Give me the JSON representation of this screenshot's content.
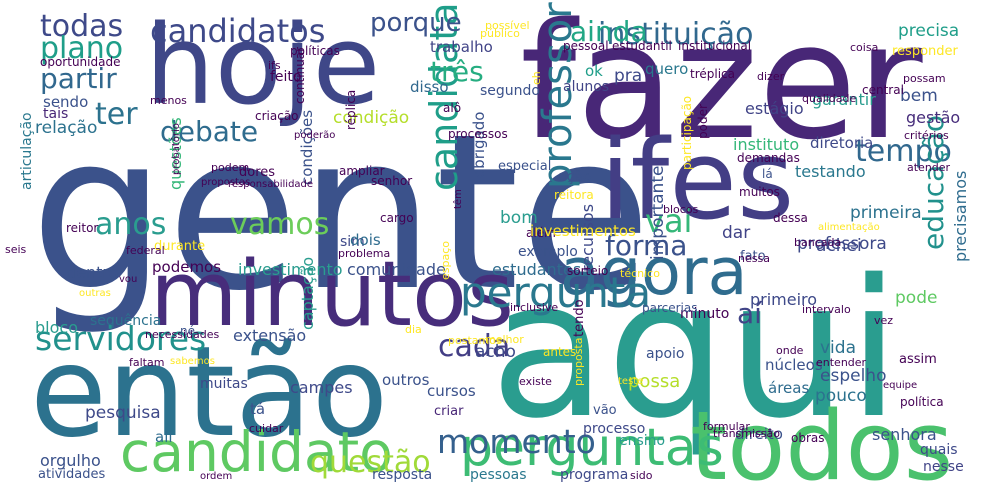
{
  "words": [
    {
      "text": "gente",
      "color": "#3b528b"
    },
    {
      "text": "fazer",
      "color": "#482777"
    },
    {
      "text": "aqui",
      "color": "#2a9d8f"
    },
    {
      "text": "hoje",
      "color": "#3f4788"
    },
    {
      "text": "ifes",
      "color": "#433e85"
    },
    {
      "text": "então",
      "color": "#2c728e"
    },
    {
      "text": "minutos",
      "color": "#472d7b"
    },
    {
      "text": "todos",
      "color": "#4ac16d"
    },
    {
      "text": "agora",
      "color": "#2f6c8e"
    },
    {
      "text": "candidato",
      "color": "#5ec962"
    },
    {
      "text": "perguntas",
      "color": "#3dbc74"
    },
    {
      "text": "pergunta",
      "color": "#2a788e"
    },
    {
      "text": "candidatos",
      "color": "#3e4989"
    },
    {
      "text": "instituição",
      "color": "#31688e"
    },
    {
      "text": "servidores",
      "color": "#21918c"
    },
    {
      "text": "momento",
      "color": "#35608d"
    },
    {
      "text": "questão",
      "color": "#a0da39"
    },
    {
      "text": "candidata",
      "color": "#1f9e89"
    },
    {
      "text": "professor",
      "color": "#2a788e"
    },
    {
      "text": "tempo",
      "color": "#31688e"
    },
    {
      "text": "todas",
      "color": "#3e4989"
    },
    {
      "text": "plano",
      "color": "#1f9e89"
    },
    {
      "text": "porque",
      "color": "#3b528b"
    },
    {
      "text": "ainda",
      "color": "#22a785"
    },
    {
      "text": "partir",
      "color": "#31688e"
    },
    {
      "text": "três",
      "color": "#26ad81"
    },
    {
      "text": "ter",
      "color": "#2c728e"
    },
    {
      "text": "debate",
      "color": "#2f6c8e"
    },
    {
      "text": "vai",
      "color": "#35b779"
    },
    {
      "text": "anos",
      "color": "#2a9d8f"
    },
    {
      "text": "vamos",
      "color": "#6ccd5a"
    },
    {
      "text": "forma",
      "color": "#3b528b"
    },
    {
      "text": "cada",
      "color": "#433e85"
    },
    {
      "text": "aí",
      "color": "#414487"
    },
    {
      "text": "educação",
      "color": "#21918c"
    },
    {
      "text": "precisa",
      "color": "#1f9e89"
    },
    {
      "text": "responder",
      "color": "#fde725"
    },
    {
      "text": "trabalho",
      "color": "#414487"
    },
    {
      "text": "condição",
      "color": "#b5de2b"
    },
    {
      "text": "segundo",
      "color": "#3b528b"
    },
    {
      "text": "alunos",
      "color": "#414487"
    },
    {
      "text": "quero",
      "color": "#2a788e"
    },
    {
      "text": "pra",
      "color": "#3e4989"
    },
    {
      "text": "ok",
      "color": "#1f9e89"
    },
    {
      "text": "disso",
      "color": "#31688e"
    },
    {
      "text": "garantir",
      "color": "#2a9d8f"
    },
    {
      "text": "bem",
      "color": "#3b528b"
    },
    {
      "text": "gestão",
      "color": "#472d7b"
    },
    {
      "text": "instituto",
      "color": "#35b779"
    },
    {
      "text": "diretoria",
      "color": "#3e4989"
    },
    {
      "text": "estágio",
      "color": "#414487"
    },
    {
      "text": "relação",
      "color": "#2c728e"
    },
    {
      "text": "sendo",
      "color": "#3b528b"
    },
    {
      "text": "tais",
      "color": "#482777"
    },
    {
      "text": "feito",
      "color": "#440154"
    },
    {
      "text": "oportunidade",
      "color": "#440154"
    },
    {
      "text": "políticas",
      "color": "#440154"
    },
    {
      "text": "articulação",
      "color": "#2a788e"
    },
    {
      "text": "questões",
      "color": "#35b779"
    },
    {
      "text": "condições",
      "color": "#3b528b"
    },
    {
      "text": "sim",
      "color": "#3e4989"
    },
    {
      "text": "dois",
      "color": "#2f6c8e"
    },
    {
      "text": "bom",
      "color": "#2a9d8f"
    },
    {
      "text": "obrigado",
      "color": "#3b528b"
    },
    {
      "text": "dar",
      "color": "#414487"
    },
    {
      "text": "achei",
      "color": "#3e4989"
    },
    {
      "text": "professora",
      "color": "#3e4989"
    },
    {
      "text": "primeira",
      "color": "#2c728e"
    },
    {
      "text": "testando",
      "color": "#2a788e"
    },
    {
      "text": "dentro",
      "color": "#3b528b"
    },
    {
      "text": "podemos",
      "color": "#440154"
    },
    {
      "text": "investimento",
      "color": "#2a9d8f"
    },
    {
      "text": "comunidade",
      "color": "#3b528b"
    },
    {
      "text": "estudantes",
      "color": "#2f6c8e"
    },
    {
      "text": "primeiro",
      "color": "#3e4989"
    },
    {
      "text": "pode",
      "color": "#5ec962"
    },
    {
      "text": "precisamos",
      "color": "#2f6c8e"
    },
    {
      "text": "bloco",
      "color": "#2a9d8f"
    },
    {
      "text": "sequência",
      "color": "#2c728e"
    },
    {
      "text": "extensão",
      "color": "#3b528b"
    },
    {
      "text": "recursos",
      "color": "#3e4989"
    },
    {
      "text": "acho",
      "color": "#3e4989"
    },
    {
      "text": "vida",
      "color": "#2c728e"
    },
    {
      "text": "espelho",
      "color": "#3b528b"
    },
    {
      "text": "pouco",
      "color": "#2c728e"
    },
    {
      "text": "importante",
      "color": "#3b528b"
    },
    {
      "text": "possa",
      "color": "#b5de2b"
    },
    {
      "text": "captação",
      "color": "#2a9d8f"
    },
    {
      "text": "campes",
      "color": "#3e4989"
    },
    {
      "text": "pesquisa",
      "color": "#3e4989"
    },
    {
      "text": "tá",
      "color": "#3b528b"
    },
    {
      "text": "outros",
      "color": "#3b528b"
    },
    {
      "text": "muitas",
      "color": "#3e4989"
    },
    {
      "text": "ali",
      "color": "#2f6c8e"
    },
    {
      "text": "orgulho",
      "color": "#3b528b"
    },
    {
      "text": "atividades",
      "color": "#3b528b"
    },
    {
      "text": "resposta",
      "color": "#3b528b"
    },
    {
      "text": "pessoas",
      "color": "#2a788e"
    },
    {
      "text": "programa",
      "color": "#3e4989"
    },
    {
      "text": "processo",
      "color": "#3e4989"
    },
    {
      "text": "ensino",
      "color": "#2a9d8f"
    },
    {
      "text": "direito",
      "color": "#3b528b"
    },
    {
      "text": "senhora",
      "color": "#3b528b"
    },
    {
      "text": "quais",
      "color": "#3e4989"
    },
    {
      "text": "nesse",
      "color": "#414487"
    },
    {
      "text": "cursos",
      "color": "#3b528b"
    },
    {
      "text": "criar",
      "color": "#482777"
    },
    {
      "text": "vão",
      "color": "#3b528b"
    },
    {
      "text": "áreas",
      "color": "#2f6c8e"
    },
    {
      "text": "núcleos",
      "color": "#3b528b"
    },
    {
      "text": "assim",
      "color": "#440154"
    },
    {
      "text": "apoio",
      "color": "#3b528b"
    },
    {
      "text": "minuto",
      "color": "#440154"
    },
    {
      "text": "exemplo",
      "color": "#3b528b"
    },
    {
      "text": "estudantil",
      "color": "#440154"
    },
    {
      "text": "institucional",
      "color": "#440154"
    },
    {
      "text": "pessoal",
      "color": "#440154"
    },
    {
      "text": "público",
      "color": "#fde725"
    },
    {
      "text": "possam",
      "color": "#440154"
    },
    {
      "text": "critérios",
      "color": "#440154"
    },
    {
      "text": "reitor",
      "color": "#440154"
    },
    {
      "text": "senhor",
      "color": "#440154"
    },
    {
      "text": "ação",
      "color": "#3b528b"
    },
    {
      "text": "lá",
      "color": "#3b528b"
    },
    {
      "text": "cargo",
      "color": "#440154"
    },
    {
      "text": "especial",
      "color": "#3b528b"
    },
    {
      "text": "dores",
      "color": "#440154"
    },
    {
      "text": "podem",
      "color": "#440154"
    },
    {
      "text": "propostas",
      "color": "#440154"
    },
    {
      "text": "durante",
      "color": "#fde725"
    },
    {
      "text": "federal",
      "color": "#440154"
    },
    {
      "text": "problema",
      "color": "#440154"
    },
    {
      "text": "dessa",
      "color": "#440154"
    },
    {
      "text": "fato",
      "color": "#3b528b"
    },
    {
      "text": "bancada",
      "color": "#440154"
    },
    {
      "text": "vez",
      "color": "#440154"
    },
    {
      "text": "onde",
      "color": "#440154"
    },
    {
      "text": "entender",
      "color": "#440154"
    },
    {
      "text": "política",
      "color": "#440154"
    },
    {
      "text": "equipe",
      "color": "#440154"
    },
    {
      "text": "dizer",
      "color": "#440154"
    },
    {
      "text": "central",
      "color": "#440154"
    },
    {
      "text": "demandas",
      "color": "#440154"
    },
    {
      "text": "atender",
      "color": "#440154"
    },
    {
      "text": "muitos",
      "color": "#440154"
    },
    {
      "text": "blocos",
      "color": "#440154"
    },
    {
      "text": "além",
      "color": "#440154"
    },
    {
      "text": "sorteio",
      "color": "#440154"
    },
    {
      "text": "parcerias",
      "color": "#3b528b"
    },
    {
      "text": "inclusive",
      "color": "#440154"
    },
    {
      "text": "existe",
      "color": "#440154"
    },
    {
      "text": "cuidar",
      "color": "#440154"
    },
    {
      "text": "faltam",
      "color": "#440154"
    },
    {
      "text": "necessidades",
      "color": "#440154"
    },
    {
      "text": "seis",
      "color": "#440154"
    },
    {
      "text": "sido",
      "color": "#440154"
    },
    {
      "text": "transmissão",
      "color": "#440154"
    },
    {
      "text": "formular",
      "color": "#440154"
    },
    {
      "text": "obras",
      "color": "#440154"
    },
    {
      "text": "intervalo",
      "color": "#440154"
    },
    {
      "text": "réplica",
      "color": "#440154"
    },
    {
      "text": "tréplica",
      "color": "#440154"
    },
    {
      "text": "processos",
      "color": "#440154"
    },
    {
      "text": "coisa",
      "color": "#440154"
    },
    {
      "text": "alô",
      "color": "#440154"
    },
    {
      "text": "poderão",
      "color": "#440154"
    },
    {
      "text": "participação",
      "color": "#fde725"
    },
    {
      "text": "qualidade",
      "color": "#440154"
    },
    {
      "text": "menos",
      "color": "#440154"
    },
    {
      "text": "ifs",
      "color": "#440154"
    },
    {
      "text": "criação",
      "color": "#440154"
    },
    {
      "text": "continuar",
      "color": "#440154"
    },
    {
      "text": "poder",
      "color": "#440154"
    },
    {
      "text": "probatório",
      "color": "#440154"
    },
    {
      "text": "responsabilidade",
      "color": "#440154"
    },
    {
      "text": "ampliar",
      "color": "#440154"
    },
    {
      "text": "reitora",
      "color": "#fde725"
    },
    {
      "text": "têm",
      "color": "#440154"
    },
    {
      "text": "possível",
      "color": "#fde725"
    },
    {
      "text": "eh",
      "color": "#fde725"
    },
    {
      "text": "nessa",
      "color": "#440154"
    },
    {
      "text": "alimentação",
      "color": "#fde725"
    },
    {
      "text": "tendo",
      "color": "#440154"
    },
    {
      "text": "teste",
      "color": "#fde725"
    },
    {
      "text": "proposta",
      "color": "#fde725"
    },
    {
      "text": "antes",
      "color": "#fde725"
    },
    {
      "text": "melhor",
      "color": "#fde725"
    },
    {
      "text": "dia",
      "color": "#fde725"
    },
    {
      "text": "espaço",
      "color": "#fde725"
    },
    {
      "text": "técnico",
      "color": "#fde725"
    },
    {
      "text": "ordem",
      "color": "#440154"
    },
    {
      "text": "vou",
      "color": "#440154"
    },
    {
      "text": "sabemos",
      "color": "#fde725"
    },
    {
      "text": "investimentos",
      "color": "#fde725"
    },
    {
      "text": "postamos",
      "color": "#fde725"
    },
    {
      "text": "né",
      "color": "#3b528b"
    },
    {
      "text": "outras",
      "color": "#fde725"
    },
    {
      "text": "experiência",
      "color": "#5ec962"
    },
    {
      "text": "adequadas",
      "color": "#fde725"
    }
  ]
}
